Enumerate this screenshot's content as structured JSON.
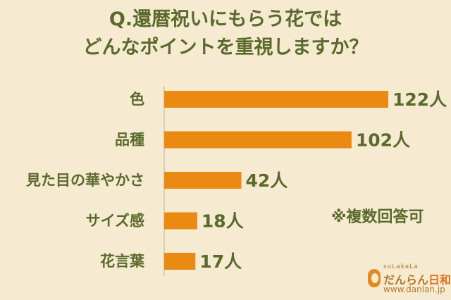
{
  "chart_data": {
    "type": "bar",
    "orientation": "horizontal",
    "title_lines": [
      "Q.還暦祝いにもらう花では",
      "どんなポイントを重視しますか？"
    ],
    "categories": [
      "色",
      "品種",
      "見た目の華やかさ",
      "サイズ感",
      "花言葉"
    ],
    "values": [
      122,
      102,
      42,
      18,
      17
    ],
    "value_labels": [
      "122人",
      "102人",
      "42人",
      "18人",
      "17人"
    ],
    "unit": "人",
    "xlim": [
      0,
      122
    ],
    "grid": false,
    "bar_color": "#ea8a12",
    "text_color": "#596a2c",
    "background": "#f6ead0"
  },
  "note": "※複数回答可",
  "brand": {
    "sub": "soLakaLa",
    "name_part1": "だんらん",
    "name_part2": "日和",
    "url": "www.danlan.jp"
  }
}
